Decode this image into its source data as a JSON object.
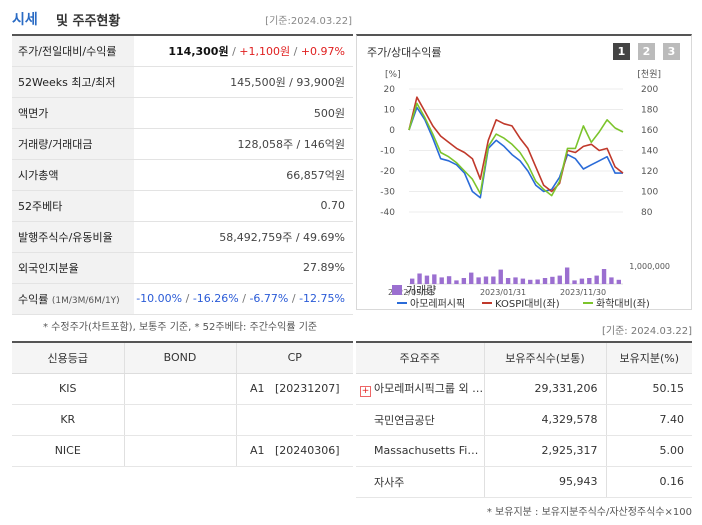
{
  "header": {
    "title_main": "시세",
    "title_sub": "및 주주현황",
    "date": "[기준:2024.03.22]"
  },
  "info_rows": [
    {
      "key": "주가/전일대비/수익률",
      "price": "114,300원",
      "change": "+1,100원",
      "rate": "+0.97%"
    },
    {
      "key": "52Weeks 최고/최저",
      "value": "145,500원 / 93,900원"
    },
    {
      "key": "액면가",
      "value": "500원"
    },
    {
      "key": "거래량/거래대금",
      "value": "128,058주 / 146억원"
    },
    {
      "key": "시가총액",
      "value": "66,857억원"
    },
    {
      "key": "52주베타",
      "value": "0.70"
    },
    {
      "key": "발행주식수/유동비율",
      "value": "58,492,759주 / 49.69%"
    },
    {
      "key": "외국인지분율",
      "value": "27.89%"
    },
    {
      "key": "수익률",
      "key_sub": "(1M/3M/6M/1Y)",
      "r1": "-10.00%",
      "r2": "-16.26%",
      "r3": "-6.77%",
      "r4": "-12.75%"
    }
  ],
  "note_left": "* 수정주가(차트포함), 보통주 기준, * 52주베타: 주간수익률 기준",
  "chart_panel": {
    "title": "주가/상대수익률",
    "pages": [
      "1",
      "2",
      "3"
    ]
  },
  "chart_data": {
    "type": "line",
    "left_axis_label": "[%]",
    "right_axis_label": "[천원]",
    "left_ticks": [
      "20",
      "10",
      "0",
      "-10",
      "-20",
      "-30",
      "-40"
    ],
    "right_ticks": [
      "200",
      "180",
      "160",
      "140",
      "120",
      "100",
      "80"
    ],
    "ylim_left": [
      -40,
      20
    ],
    "ylim_right": [
      80,
      200
    ],
    "volume_tick": "1,000,000",
    "x_labels": [
      "2022/03/31",
      "2023/01/31",
      "2023/11/30"
    ],
    "series": [
      {
        "name": "아모레퍼시픽",
        "color": "#2a6bd8",
        "values": [
          0,
          11,
          5,
          -4,
          -14,
          -15,
          -17,
          -21,
          -30,
          -33,
          -9,
          -5,
          -8,
          -12,
          -15,
          -20,
          -27,
          -30,
          -29,
          -23,
          -12,
          -14,
          -19,
          -17,
          -15,
          -13,
          -21,
          -21
        ]
      },
      {
        "name": "KOSPI대비(좌)",
        "color": "#c0392b",
        "values": [
          0,
          16,
          9,
          2,
          -3,
          -6,
          -9,
          -11,
          -14,
          -24,
          -5,
          5,
          3,
          2,
          -4,
          -9,
          -18,
          -27,
          -30,
          -26,
          -10,
          -11,
          -8,
          -7,
          -10,
          -9,
          -18,
          -21
        ]
      },
      {
        "name": "화학대비(좌)",
        "color": "#7cc42c",
        "values": [
          0,
          13,
          6,
          -2,
          -11,
          -13,
          -16,
          -20,
          -24,
          -31,
          -8,
          -2,
          -4,
          -7,
          -11,
          -17,
          -25,
          -29,
          -32,
          -25,
          -9,
          -9,
          2,
          -6,
          -1,
          5,
          1,
          -1
        ]
      }
    ],
    "volume": {
      "name": "거래량",
      "color": "#9b6fd0",
      "values": [
        0.18,
        0.35,
        0.28,
        0.32,
        0.22,
        0.26,
        0.12,
        0.2,
        0.38,
        0.22,
        0.25,
        0.25,
        0.48,
        0.2,
        0.22,
        0.18,
        0.14,
        0.15,
        0.2,
        0.24,
        0.28,
        0.55,
        0.12,
        0.18,
        0.2,
        0.28,
        0.5,
        0.22,
        0.14
      ]
    }
  },
  "note_right": "[기준: 2024.03.22]",
  "credit": {
    "headers": [
      "신용등급",
      "BOND",
      "CP"
    ],
    "rows": [
      [
        "KIS",
        "",
        "A1   [20231207]"
      ],
      [
        "KR",
        "",
        ""
      ],
      [
        "NICE",
        "",
        "A1   [20240306]"
      ]
    ]
  },
  "holders": {
    "headers": [
      "주요주주",
      "보유주식수(보통)",
      "보유지분(%)"
    ],
    "rows": [
      [
        "아모레퍼시픽그룹 외 9인",
        "29,331,206",
        "50.15"
      ],
      [
        "국민연금공단",
        "4,329,578",
        "7.40"
      ],
      [
        "Massachusetts Finan…",
        "2,925,317",
        "5.00"
      ],
      [
        "자사주",
        "95,943",
        "0.16"
      ]
    ]
  },
  "note_bottom": "* 보유지분 : 보유지분주식수/자산정주식수×100"
}
